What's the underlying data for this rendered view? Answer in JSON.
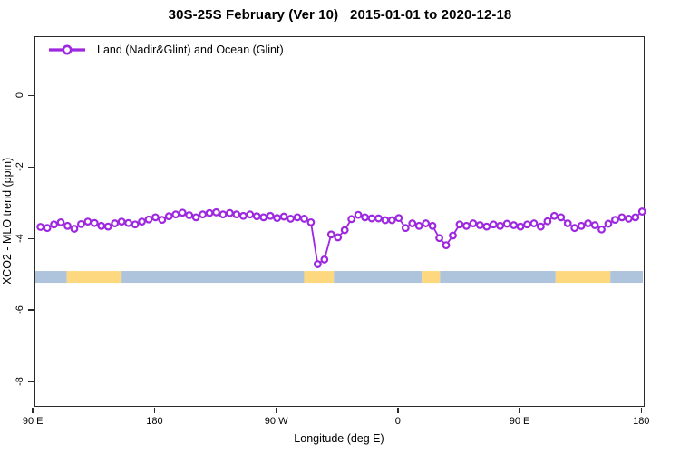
{
  "title": "30S-25S February (Ver 10)   2015-01-01 to 2020-12-18",
  "legend": {
    "label": "Land (Nadir&Glint) and Ocean (Glint)"
  },
  "colors": {
    "series": "#9d28e0",
    "ocean_band": "#aec3dc",
    "land_band": "#fdd87f",
    "axis": "#2b2b2b"
  },
  "chart_data": {
    "type": "line",
    "title": "30S-25S February (Ver 10)   2015-01-01 to 2020-12-18",
    "xlabel": "Longitude (deg E)",
    "ylabel": "XCO2 - MLO trend (ppm)",
    "legend_position": "top-left-strip",
    "grid": false,
    "xlim": [
      91.2,
      540.5
    ],
    "ylim": [
      -8.63,
      1.66
    ],
    "x_ticks": [
      {
        "value": 90,
        "label": "90 E"
      },
      {
        "value": 180,
        "label": "180"
      },
      {
        "value": 270,
        "label": "90 W"
      },
      {
        "value": 360,
        "label": "0"
      },
      {
        "value": 450,
        "label": "90 E"
      },
      {
        "value": 540,
        "label": "180"
      }
    ],
    "y_ticks": [
      {
        "value": 0,
        "label": "0"
      },
      {
        "value": -2,
        "label": "-2"
      },
      {
        "value": -4,
        "label": "-4"
      },
      {
        "value": -6,
        "label": "-6"
      },
      {
        "value": -8,
        "label": "-8"
      }
    ],
    "series": [
      {
        "name": "Land (Nadir&Glint) and Ocean (Glint)",
        "color": "#9d28e0",
        "marker": "open-circle",
        "x": [
          95,
          100,
          105,
          110,
          115,
          120,
          125,
          130,
          135,
          140,
          145,
          150,
          155,
          160,
          165,
          170,
          175,
          180,
          185,
          190,
          195,
          200,
          205,
          210,
          215,
          220,
          225,
          230,
          235,
          240,
          245,
          250,
          255,
          260,
          265,
          270,
          275,
          280,
          285,
          290,
          295,
          300,
          305,
          310,
          315,
          320,
          325,
          330,
          335,
          340,
          345,
          350,
          355,
          360,
          365,
          370,
          375,
          380,
          385,
          390,
          395,
          400,
          405,
          410,
          415,
          420,
          425,
          430,
          435,
          440,
          445,
          450,
          455,
          460,
          465,
          470,
          475,
          480,
          485,
          490,
          495,
          500,
          505,
          510,
          515,
          520,
          525,
          530,
          535,
          540
        ],
        "y": [
          -3.65,
          -3.68,
          -3.58,
          -3.52,
          -3.62,
          -3.7,
          -3.57,
          -3.5,
          -3.54,
          -3.62,
          -3.64,
          -3.55,
          -3.5,
          -3.54,
          -3.58,
          -3.5,
          -3.44,
          -3.38,
          -3.45,
          -3.35,
          -3.3,
          -3.25,
          -3.32,
          -3.38,
          -3.3,
          -3.26,
          -3.24,
          -3.3,
          -3.26,
          -3.3,
          -3.34,
          -3.3,
          -3.35,
          -3.38,
          -3.34,
          -3.4,
          -3.36,
          -3.42,
          -3.38,
          -3.42,
          -3.52,
          -4.69,
          -4.56,
          -3.86,
          -3.94,
          -3.74,
          -3.43,
          -3.31,
          -3.38,
          -3.41,
          -3.41,
          -3.46,
          -3.46,
          -3.4,
          -3.68,
          -3.55,
          -3.62,
          -3.55,
          -3.62,
          -3.96,
          -4.16,
          -3.89,
          -3.58,
          -3.62,
          -3.55,
          -3.6,
          -3.64,
          -3.58,
          -3.62,
          -3.56,
          -3.6,
          -3.64,
          -3.58,
          -3.55,
          -3.64,
          -3.49,
          -3.34,
          -3.38,
          -3.55,
          -3.68,
          -3.62,
          -3.55,
          -3.6,
          -3.72,
          -3.56,
          -3.45,
          -3.38,
          -3.42,
          -3.38,
          -3.22
        ]
      }
    ],
    "surface_band": {
      "value_top": -4.88,
      "value_bottom": -5.21,
      "colors": {
        "ocean": "#aec3dc",
        "land": "#fdd87f"
      },
      "segments": [
        {
          "type": "ocean",
          "from": 91.2,
          "to": 114.5
        },
        {
          "type": "land",
          "from": 114.5,
          "to": 155
        },
        {
          "type": "ocean",
          "from": 155,
          "to": 290
        },
        {
          "type": "land",
          "from": 290,
          "to": 312
        },
        {
          "type": "ocean",
          "from": 312,
          "to": 377
        },
        {
          "type": "land",
          "from": 377,
          "to": 390.5
        },
        {
          "type": "ocean",
          "from": 390.5,
          "to": 476
        },
        {
          "type": "land",
          "from": 476,
          "to": 516.5
        },
        {
          "type": "ocean",
          "from": 516.5,
          "to": 540.5
        }
      ]
    }
  }
}
